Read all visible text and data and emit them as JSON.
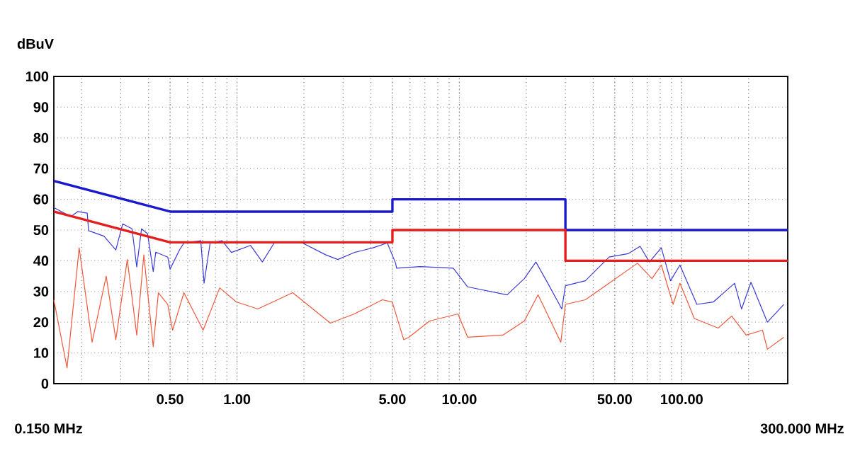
{
  "chart_data": {
    "type": "line",
    "ylabel": "dBuV",
    "log": "x",
    "grid": true,
    "marker": "none",
    "line_style": "solid",
    "xlim": [
      0.15,
      300
    ],
    "xticks": [
      {
        "value": 0.5,
        "label": "0.50"
      },
      {
        "value": 1,
        "label": "1.00"
      },
      {
        "value": 5,
        "label": "5.00"
      },
      {
        "value": 10,
        "label": "10.00"
      },
      {
        "value": 50,
        "label": "50.00"
      },
      {
        "value": 100,
        "label": "100.00"
      }
    ],
    "ylim": [
      0,
      100
    ],
    "yticks": [
      0,
      10,
      20,
      30,
      40,
      50,
      60,
      70,
      80,
      90,
      100
    ],
    "annotations": [
      "0.150 MHz",
      "300.000 MHz"
    ],
    "series": [
      {
        "color": "#1a1acc",
        "x": [
          0.15,
          0.5,
          5,
          5,
          30,
          30,
          300
        ],
        "values": [
          66,
          56,
          56,
          60,
          60,
          50,
          50
        ]
      },
      {
        "color": "#e41e1e",
        "x": [
          0.15,
          0.5,
          5,
          5,
          30,
          30,
          300
        ],
        "values": [
          56,
          46,
          46,
          50,
          50,
          40,
          40
        ]
      },
      {
        "color": "#3a3ad6",
        "x": [
          0.15,
          0.179,
          0.192,
          0.212,
          0.215,
          0.252,
          0.285,
          0.306,
          0.337,
          0.354,
          0.372,
          0.396,
          0.42,
          0.431,
          0.488,
          0.5,
          0.551,
          0.577,
          0.687,
          0.711,
          0.757,
          0.857,
          0.944,
          1.15,
          1.3,
          1.47,
          1.97,
          2.51,
          2.84,
          3.37,
          4.09,
          4.74,
          5.17,
          5.22,
          6.67,
          9.39,
          10.9,
          16.4,
          19.6,
          22.1,
          25,
          28.9,
          30,
          36.9,
          47.2,
          57.4,
          65,
          71.6,
          81,
          89.1,
          98.2,
          117,
          139,
          173,
          186,
          205,
          243,
          288
        ],
        "values": [
          57.3,
          54.4,
          56,
          55.5,
          49.8,
          48,
          43.5,
          52,
          50.4,
          38,
          50.4,
          48.8,
          36.5,
          42.8,
          41.2,
          37.3,
          43.5,
          45.8,
          46.5,
          32.7,
          45.8,
          46.5,
          42.7,
          45,
          39.6,
          45.8,
          45.8,
          41.9,
          40.4,
          42.7,
          44.2,
          45.8,
          39.2,
          37.6,
          38.1,
          37.6,
          31.5,
          28.9,
          34.2,
          39.6,
          32.7,
          24.3,
          31.9,
          33.5,
          41.2,
          42.3,
          44.7,
          39.6,
          44.2,
          33.5,
          38.6,
          25.8,
          26.6,
          32.7,
          24.3,
          33,
          20,
          25.8
        ]
      },
      {
        "color": "#f0583c",
        "x": [
          0.15,
          0.172,
          0.195,
          0.223,
          0.258,
          0.285,
          0.321,
          0.354,
          0.381,
          0.42,
          0.443,
          0.488,
          0.513,
          0.577,
          0.704,
          0.836,
          0.992,
          1.24,
          1.78,
          2.63,
          3.37,
          4.51,
          4.99,
          5.62,
          5.93,
          7.35,
          9.86,
          10.9,
          15.7,
          19.6,
          22.6,
          28.6,
          30,
          36.9,
          47.2,
          63.3,
          73.5,
          81,
          91.5,
          98.2,
          114,
          146,
          168,
          195,
          231,
          243,
          288
        ],
        "values": [
          27.3,
          5.1,
          44.2,
          13.5,
          35,
          14.3,
          40.4,
          15.8,
          41.9,
          12,
          29.6,
          25.8,
          17.4,
          29.6,
          17.4,
          31.2,
          26.6,
          24.3,
          29.6,
          19.7,
          22.7,
          27.3,
          26.6,
          14.3,
          15.1,
          20.4,
          22.7,
          15.1,
          15.8,
          20.4,
          28.9,
          13.5,
          25.8,
          27.3,
          32.7,
          39.2,
          34.2,
          38.6,
          25.8,
          32.7,
          21.2,
          18.1,
          22,
          15.8,
          17.4,
          11.2,
          15.1
        ]
      }
    ]
  }
}
